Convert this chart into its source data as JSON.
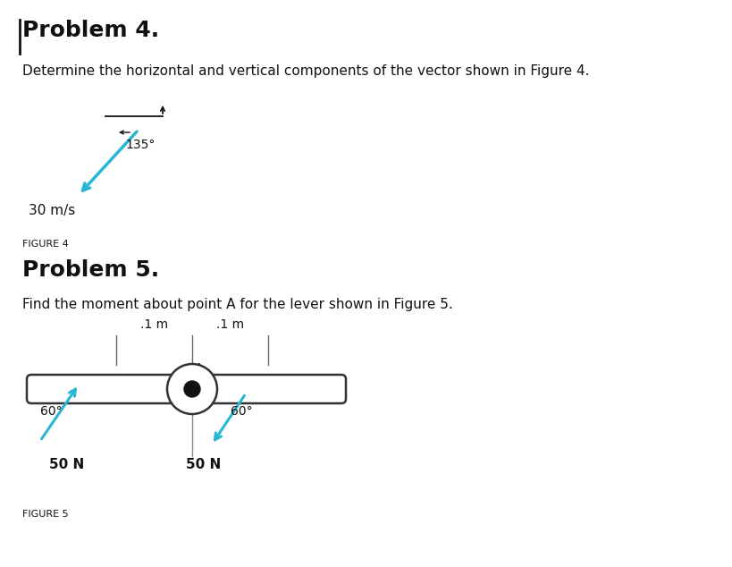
{
  "bg_color": "#ffffff",
  "fig_width": 8.2,
  "fig_height": 6.34,
  "prob4_title": "Problem 4.",
  "prob4_desc": "Determine the horizontal and vertical components of the vector shown in Figure 4.",
  "fig4_label": "FIGURE 4",
  "fig5_label": "FIGURE 5",
  "prob5_title": "Problem 5.",
  "prob5_desc": "Find the moment about point A for the lever shown in Figure 5.",
  "vec4_color": "#29b6d5",
  "vec5_color": "#29b6d5",
  "lever_color": "#ffffff",
  "lever_edge_color": "#333333",
  "dot_color": "#111111"
}
